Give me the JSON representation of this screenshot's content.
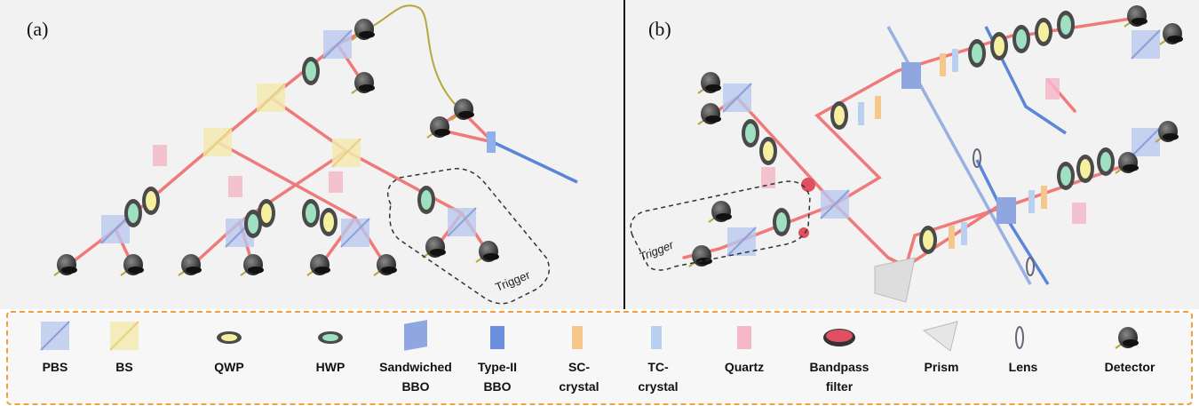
{
  "panels": [
    {
      "label": "(a)",
      "trigger": "Trigger"
    },
    {
      "label": "(b)",
      "trigger": "Trigger"
    }
  ],
  "legend": [
    {
      "lines": [
        "PBS"
      ]
    },
    {
      "lines": [
        "BS"
      ]
    },
    {
      "lines": [
        "QWP"
      ]
    },
    {
      "lines": [
        "HWP"
      ]
    },
    {
      "lines": [
        "Sandwiched",
        "BBO"
      ]
    },
    {
      "lines": [
        "Type-II",
        "BBO"
      ]
    },
    {
      "lines": [
        "SC-",
        "crystal"
      ]
    },
    {
      "lines": [
        "TC-",
        "crystal"
      ]
    },
    {
      "lines": [
        "Quartz"
      ]
    },
    {
      "lines": [
        "Bandpass",
        "filter"
      ]
    },
    {
      "lines": [
        "Prism"
      ]
    },
    {
      "lines": [
        "Lens"
      ]
    },
    {
      "lines": [
        "Detector"
      ]
    }
  ]
}
